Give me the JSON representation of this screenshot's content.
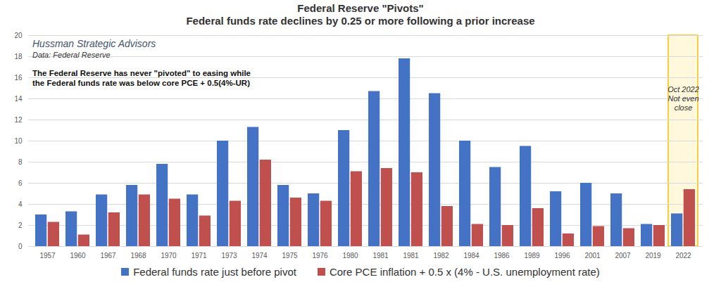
{
  "chart_data": {
    "type": "bar",
    "title": "Federal Reserve \"Pivots\"",
    "subtitle": "Federal funds rate declines by 0.25 or more following a prior increase",
    "source": [
      "Hussman Strategic Advisors",
      "Data: Federal Reserve"
    ],
    "note": [
      "The Federal Reserve has never \"pivoted\" to easing while",
      "the Federal funds rate was below core PCE + 0.5(4%-UR)"
    ],
    "annotations": [
      {
        "category": "2022",
        "text": [
          "Oct 2022",
          "Not even",
          "close"
        ]
      }
    ],
    "categories": [
      "1957",
      "1960",
      "1967",
      "1968",
      "1970",
      "1971",
      "1973",
      "1974",
      "1975",
      "1976",
      "1980",
      "1981",
      "1981",
      "1982",
      "1984",
      "1986",
      "1989",
      "1996",
      "2001",
      "2007",
      "2019",
      "2022"
    ],
    "series": [
      {
        "name": "Federal funds rate just before pivot",
        "color": "#4472c4",
        "values": [
          3.0,
          3.3,
          4.9,
          5.8,
          7.8,
          4.9,
          10.0,
          11.3,
          5.8,
          5.0,
          11.0,
          14.7,
          17.8,
          14.5,
          10.0,
          7.5,
          9.5,
          5.2,
          6.0,
          5.0,
          2.1,
          3.1
        ]
      },
      {
        "name": "Core PCE inflation + 0.5 x (4% - U.S. unemployment rate)",
        "color": "#c0504d",
        "values": [
          2.3,
          1.1,
          3.2,
          4.9,
          4.5,
          2.9,
          4.3,
          8.2,
          4.6,
          4.3,
          7.1,
          7.4,
          7.0,
          3.8,
          2.1,
          2.0,
          3.6,
          1.2,
          1.9,
          1.7,
          2.0,
          5.4
        ]
      }
    ],
    "ylim": [
      0,
      20
    ],
    "yticks": [
      0,
      2,
      4,
      6,
      8,
      10,
      12,
      14,
      16,
      18,
      20
    ],
    "grid": true,
    "legend": "bottom"
  }
}
